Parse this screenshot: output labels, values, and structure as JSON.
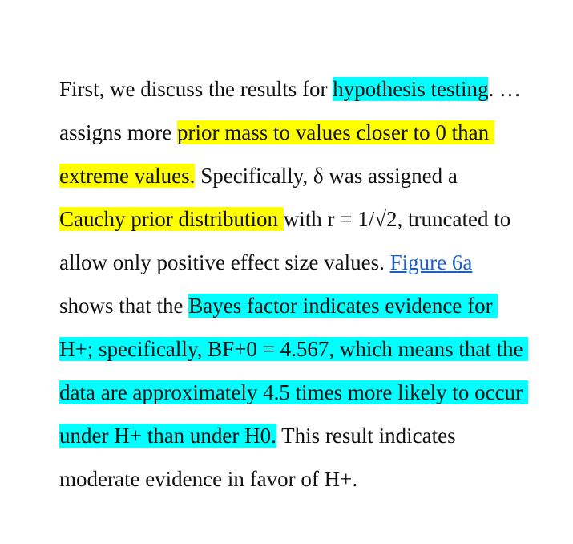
{
  "colors": {
    "highlight_cyan": "#00ffff",
    "highlight_yellow": "#ffff00",
    "link": "#1f5fbf",
    "text": "#111111"
  },
  "paragraph": {
    "lines": [
      [
        {
          "text": "First, we discuss the results for ",
          "style": "plain"
        },
        {
          "text": "hypothesis testing",
          "style": "cyan"
        },
        {
          "text": ". …",
          "style": "plain"
        }
      ],
      [
        {
          "text": "assigns more ",
          "style": "plain"
        },
        {
          "text": "prior mass to values closer to 0 than ",
          "style": "yellow"
        }
      ],
      [
        {
          "text": "extreme values.",
          "style": "yellow"
        },
        {
          "text": " Specifically, δ was assigned a",
          "style": "plain"
        }
      ],
      [
        {
          "text": "Cauchy prior distribution ",
          "style": "yellow"
        },
        {
          "text": "with r = 1/√2, truncated to",
          "style": "plain"
        }
      ],
      [
        {
          "text": "allow only positive effect size values. ",
          "style": "plain"
        },
        {
          "text": "Figure 6a",
          "style": "link"
        }
      ],
      [
        {
          "text": "shows that the ",
          "style": "plain"
        },
        {
          "text": "Bayes factor indicates evidence for ",
          "style": "cyan"
        }
      ],
      [
        {
          "text": "H+; specifically, BF+0 = 4.567, which means that the ",
          "style": "cyan"
        }
      ],
      [
        {
          "text": "data are approximately 4.5 times more likely to occur ",
          "style": "cyan"
        }
      ],
      [
        {
          "text": "under H+ than under H0.",
          "style": "cyan"
        },
        {
          "text": " This result indicates",
          "style": "plain"
        }
      ],
      [
        {
          "text": "moderate evidence in favor of H+.",
          "style": "plain"
        }
      ]
    ]
  }
}
